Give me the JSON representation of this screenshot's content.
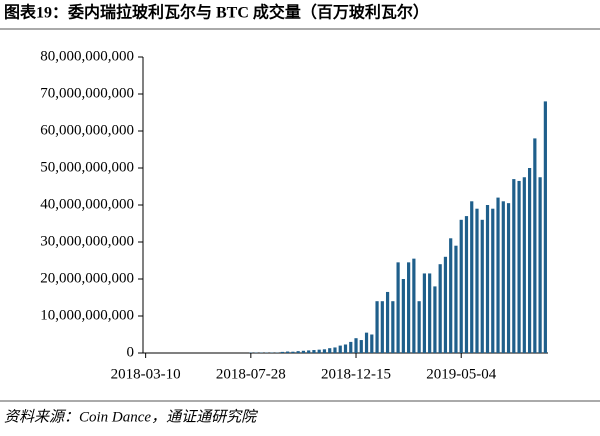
{
  "chart_data": {
    "type": "bar",
    "title": "图表19：委内瑞拉玻利瓦尔与 BTC 成交量（百万玻利瓦尔）",
    "source": "资料来源：Coin Dance，通证通研究院",
    "color": "#1f5f8b",
    "categories": [
      "2018-03-10",
      null,
      null,
      null,
      null,
      null,
      null,
      null,
      null,
      null,
      null,
      null,
      null,
      null,
      null,
      null,
      null,
      null,
      null,
      null,
      "2018-07-28",
      null,
      null,
      null,
      null,
      null,
      null,
      null,
      null,
      null,
      null,
      null,
      null,
      null,
      null,
      null,
      null,
      null,
      null,
      null,
      "2018-12-15",
      null,
      null,
      null,
      null,
      null,
      null,
      null,
      null,
      null,
      null,
      null,
      null,
      null,
      null,
      null,
      null,
      null,
      null,
      null,
      "2019-05-04",
      null,
      null,
      null,
      null,
      null,
      null,
      null,
      null,
      null,
      null,
      null,
      null,
      null,
      null,
      null,
      null
    ],
    "values": [
      0,
      0,
      0,
      0,
      0,
      0,
      0,
      0,
      0,
      0,
      0,
      0,
      0,
      0,
      0,
      0,
      0,
      0,
      0,
      0,
      100000000,
      100000000,
      100000000,
      100000000,
      100000000,
      100000000,
      300000000,
      400000000,
      350000000,
      500000000,
      600000000,
      700000000,
      800000000,
      900000000,
      1000000000,
      1300000000,
      1500000000,
      2000000000,
      2300000000,
      3000000000,
      4000000000,
      3500000000,
      5500000000,
      5000000000,
      14000000000,
      14000000000,
      16500000000,
      14000000000,
      24500000000,
      20000000000,
      24500000000,
      25500000000,
      14000000000,
      21500000000,
      21500000000,
      18000000000,
      24000000000,
      26000000000,
      31000000000,
      29000000000,
      36000000000,
      37000000000,
      41000000000,
      39000000000,
      36000000000,
      40000000000,
      39000000000,
      42000000000,
      41000000000,
      40500000000,
      47000000000,
      46500000000,
      47500000000,
      50000000000,
      58000000000,
      47500000000,
      68000000000
    ],
    "ylim": [
      0,
      80000000000
    ],
    "yticks": [
      0,
      {
        "value": 10000000000,
        "label": "10,000,000,000"
      },
      {
        "value": 20000000000,
        "label": "20,000,000,000"
      },
      {
        "value": 30000000000,
        "label": "30,000,000,000"
      },
      {
        "value": 40000000000,
        "label": "40,000,000,000"
      },
      {
        "value": 50000000000,
        "label": "50,000,000,000"
      },
      {
        "value": 60000000000,
        "label": "60,000,000,000"
      },
      {
        "value": 70000000000,
        "label": "70,000,000,000"
      },
      {
        "value": 80000000000,
        "label": "80,000,000,000"
      }
    ]
  }
}
